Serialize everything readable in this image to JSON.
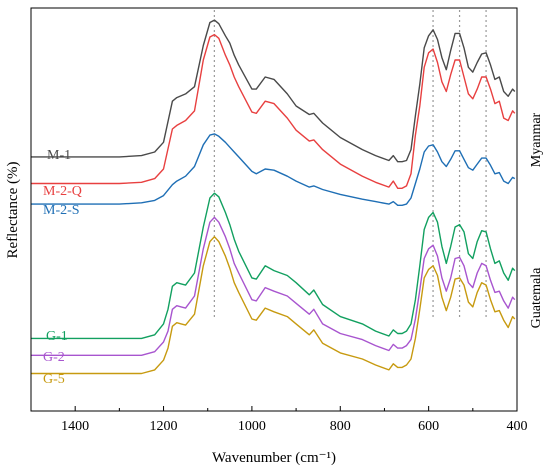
{
  "chart_data": {
    "type": "line",
    "title": "",
    "xlabel": "Wavenumber (cm⁻¹)",
    "ylabel": "Reflectance (%)",
    "xlim": [
      1500,
      400
    ],
    "x_reversed": true,
    "x_ticks": [
      "1400",
      "1200",
      "1000",
      "800",
      "600",
      "400"
    ],
    "y_ticks_shown": false,
    "grid": false,
    "reference_lines_x": [
      1085,
      590,
      530,
      470
    ],
    "groups": [
      {
        "label": "Myanmar",
        "series": [
          "M-1",
          "M-2-Q",
          "M-2-S"
        ]
      },
      {
        "label": "Guatemala",
        "series": [
          "G-1",
          "G-2",
          "G-5"
        ]
      }
    ],
    "series": [
      {
        "name": "M-1",
        "color": "#4a4a4a",
        "x": [
          1500,
          1300,
          1250,
          1220,
          1200,
          1180,
          1170,
          1150,
          1130,
          1110,
          1095,
          1085,
          1075,
          1060,
          1050,
          1040,
          1030,
          1000,
          990,
          970,
          950,
          920,
          900,
          870,
          860,
          840,
          800,
          750,
          720,
          690,
          680,
          670,
          660,
          650,
          640,
          630,
          620,
          610,
          600,
          590,
          580,
          570,
          560,
          550,
          540,
          530,
          520,
          510,
          500,
          490,
          480,
          470,
          460,
          450,
          440,
          430,
          420,
          410,
          405
        ],
        "y": [
          1.3,
          1.3,
          1.35,
          1.5,
          1.9,
          3.6,
          3.75,
          3.9,
          4.2,
          5.9,
          6.85,
          6.95,
          6.8,
          6.3,
          6.0,
          5.5,
          5.1,
          4.1,
          4.1,
          4.6,
          4.5,
          3.9,
          3.4,
          3.05,
          3.1,
          2.7,
          2.1,
          1.6,
          1.35,
          1.15,
          1.35,
          1.1,
          1.1,
          1.15,
          1.6,
          3.0,
          4.3,
          5.8,
          6.3,
          6.55,
          6.15,
          5.4,
          4.9,
          5.7,
          6.4,
          6.4,
          5.8,
          5.0,
          4.8,
          5.2,
          5.55,
          5.6,
          5.1,
          4.5,
          4.6,
          4.0,
          3.8,
          4.1,
          4.0
        ]
      },
      {
        "name": "M-2-Q",
        "color": "#e84040",
        "x": [
          1500,
          1300,
          1250,
          1220,
          1200,
          1180,
          1170,
          1150,
          1130,
          1110,
          1095,
          1085,
          1075,
          1060,
          1050,
          1040,
          1030,
          1000,
          990,
          970,
          950,
          920,
          900,
          870,
          860,
          840,
          800,
          750,
          720,
          690,
          680,
          670,
          660,
          650,
          640,
          630,
          620,
          610,
          600,
          590,
          580,
          570,
          560,
          550,
          540,
          530,
          520,
          510,
          500,
          490,
          480,
          470,
          460,
          450,
          440,
          430,
          420,
          410,
          405
        ],
        "y": [
          0.2,
          0.2,
          0.25,
          0.4,
          0.8,
          2.45,
          2.6,
          2.8,
          3.2,
          5.3,
          6.25,
          6.35,
          6.2,
          5.5,
          5.1,
          4.6,
          4.2,
          3.15,
          3.1,
          3.6,
          3.5,
          2.9,
          2.4,
          1.95,
          2.0,
          1.6,
          1.0,
          0.5,
          0.25,
          0.05,
          0.3,
          0.0,
          0.0,
          0.1,
          0.6,
          2.2,
          3.4,
          5.0,
          5.6,
          5.75,
          5.2,
          4.4,
          4.0,
          4.7,
          5.3,
          5.3,
          4.6,
          3.9,
          3.7,
          4.1,
          4.6,
          4.6,
          4.1,
          3.5,
          3.6,
          2.9,
          2.8,
          3.2,
          3.1
        ]
      },
      {
        "name": "M-2-S",
        "color": "#1f6fb5",
        "x": [
          1500,
          1300,
          1250,
          1220,
          1200,
          1180,
          1170,
          1150,
          1130,
          1110,
          1095,
          1085,
          1075,
          1060,
          1050,
          1040,
          1030,
          1000,
          990,
          970,
          950,
          920,
          900,
          870,
          860,
          840,
          800,
          750,
          720,
          690,
          680,
          670,
          660,
          650,
          640,
          630,
          620,
          610,
          600,
          590,
          580,
          570,
          560,
          550,
          540,
          530,
          520,
          510,
          500,
          490,
          480,
          470,
          460,
          450,
          440,
          430,
          420,
          410,
          405
        ],
        "y": [
          -0.65,
          -0.65,
          -0.6,
          -0.5,
          -0.3,
          0.15,
          0.3,
          0.5,
          0.9,
          1.8,
          2.2,
          2.25,
          2.15,
          1.9,
          1.7,
          1.5,
          1.3,
          0.7,
          0.6,
          0.8,
          0.75,
          0.5,
          0.3,
          0.05,
          0.1,
          -0.05,
          -0.25,
          -0.45,
          -0.55,
          -0.65,
          -0.55,
          -0.7,
          -0.7,
          -0.65,
          -0.4,
          0.2,
          0.8,
          1.5,
          1.75,
          1.8,
          1.5,
          1.1,
          0.9,
          1.2,
          1.55,
          1.55,
          1.2,
          0.85,
          0.75,
          1.0,
          1.25,
          1.25,
          0.95,
          0.6,
          0.65,
          0.3,
          0.2,
          0.45,
          0.4
        ]
      },
      {
        "name": "G-1",
        "color": "#12a060",
        "x": [
          1500,
          1250,
          1220,
          1200,
          1190,
          1180,
          1170,
          1160,
          1150,
          1130,
          1110,
          1095,
          1085,
          1075,
          1060,
          1050,
          1040,
          1030,
          1000,
          990,
          970,
          950,
          920,
          900,
          870,
          860,
          840,
          800,
          750,
          720,
          690,
          680,
          670,
          660,
          650,
          640,
          630,
          620,
          610,
          600,
          590,
          580,
          570,
          560,
          550,
          540,
          530,
          520,
          510,
          500,
          490,
          480,
          470,
          460,
          450,
          440,
          430,
          420,
          410,
          405
        ],
        "y": [
          -6.2,
          -6.2,
          -6.05,
          -5.6,
          -5.0,
          -4.05,
          -3.9,
          -3.95,
          -4.0,
          -3.5,
          -1.6,
          -0.4,
          -0.2,
          -0.35,
          -1.0,
          -1.5,
          -2.1,
          -2.6,
          -3.7,
          -3.75,
          -3.2,
          -3.4,
          -3.6,
          -3.9,
          -4.4,
          -4.2,
          -4.8,
          -5.3,
          -5.6,
          -5.9,
          -6.1,
          -5.85,
          -6.0,
          -6.0,
          -5.9,
          -5.6,
          -4.6,
          -3.2,
          -1.7,
          -1.2,
          -1.0,
          -1.4,
          -2.4,
          -3.1,
          -2.4,
          -1.6,
          -1.5,
          -1.8,
          -2.7,
          -2.9,
          -2.2,
          -1.75,
          -1.8,
          -2.5,
          -3.1,
          -3.0,
          -3.5,
          -3.8,
          -3.3,
          -3.4
        ]
      },
      {
        "name": "G-2",
        "color": "#a855cf",
        "x": [
          1500,
          1250,
          1220,
          1200,
          1190,
          1180,
          1170,
          1160,
          1150,
          1130,
          1110,
          1095,
          1085,
          1075,
          1060,
          1050,
          1040,
          1030,
          1000,
          990,
          970,
          950,
          920,
          900,
          870,
          860,
          840,
          800,
          750,
          720,
          690,
          680,
          670,
          660,
          650,
          640,
          630,
          620,
          610,
          600,
          590,
          580,
          570,
          560,
          550,
          540,
          530,
          520,
          510,
          500,
          490,
          480,
          470,
          460,
          450,
          440,
          430,
          420,
          410,
          405
        ],
        "y": [
          -6.9,
          -6.9,
          -6.75,
          -6.35,
          -5.9,
          -5.0,
          -4.85,
          -4.9,
          -4.95,
          -4.45,
          -2.5,
          -1.4,
          -1.2,
          -1.4,
          -2.0,
          -2.5,
          -3.1,
          -3.5,
          -4.6,
          -4.65,
          -4.1,
          -4.25,
          -4.45,
          -4.75,
          -5.2,
          -5.0,
          -5.6,
          -6.0,
          -6.25,
          -6.5,
          -6.7,
          -6.45,
          -6.6,
          -6.6,
          -6.5,
          -6.25,
          -5.4,
          -4.2,
          -2.9,
          -2.5,
          -2.35,
          -2.8,
          -3.7,
          -4.25,
          -3.7,
          -2.9,
          -2.85,
          -3.2,
          -3.9,
          -4.1,
          -3.5,
          -3.1,
          -3.2,
          -3.8,
          -4.3,
          -4.25,
          -4.65,
          -4.95,
          -4.5,
          -4.6
        ]
      },
      {
        "name": "G-5",
        "color": "#c79a10",
        "x": [
          1500,
          1250,
          1220,
          1200,
          1190,
          1180,
          1170,
          1160,
          1150,
          1130,
          1110,
          1095,
          1085,
          1075,
          1060,
          1050,
          1040,
          1030,
          1000,
          990,
          970,
          950,
          920,
          900,
          870,
          860,
          840,
          800,
          750,
          720,
          690,
          680,
          670,
          660,
          650,
          640,
          630,
          620,
          610,
          600,
          590,
          580,
          570,
          560,
          550,
          540,
          530,
          520,
          510,
          500,
          490,
          480,
          470,
          460,
          450,
          440,
          430,
          420,
          410,
          405
        ],
        "y": [
          -7.65,
          -7.65,
          -7.5,
          -7.1,
          -6.6,
          -5.7,
          -5.55,
          -5.6,
          -5.65,
          -5.2,
          -3.2,
          -2.2,
          -2.0,
          -2.2,
          -2.8,
          -3.3,
          -3.9,
          -4.3,
          -5.4,
          -5.45,
          -4.95,
          -5.1,
          -5.3,
          -5.6,
          -6.05,
          -5.85,
          -6.4,
          -6.8,
          -7.05,
          -7.3,
          -7.5,
          -7.25,
          -7.4,
          -7.4,
          -7.3,
          -7.05,
          -6.2,
          -5.0,
          -3.7,
          -3.35,
          -3.2,
          -3.6,
          -4.5,
          -5.05,
          -4.5,
          -3.75,
          -3.7,
          -4.0,
          -4.7,
          -4.9,
          -4.3,
          -3.9,
          -4.0,
          -4.6,
          -5.1,
          -5.05,
          -5.45,
          -5.75,
          -5.3,
          -5.4
        ]
      }
    ]
  }
}
